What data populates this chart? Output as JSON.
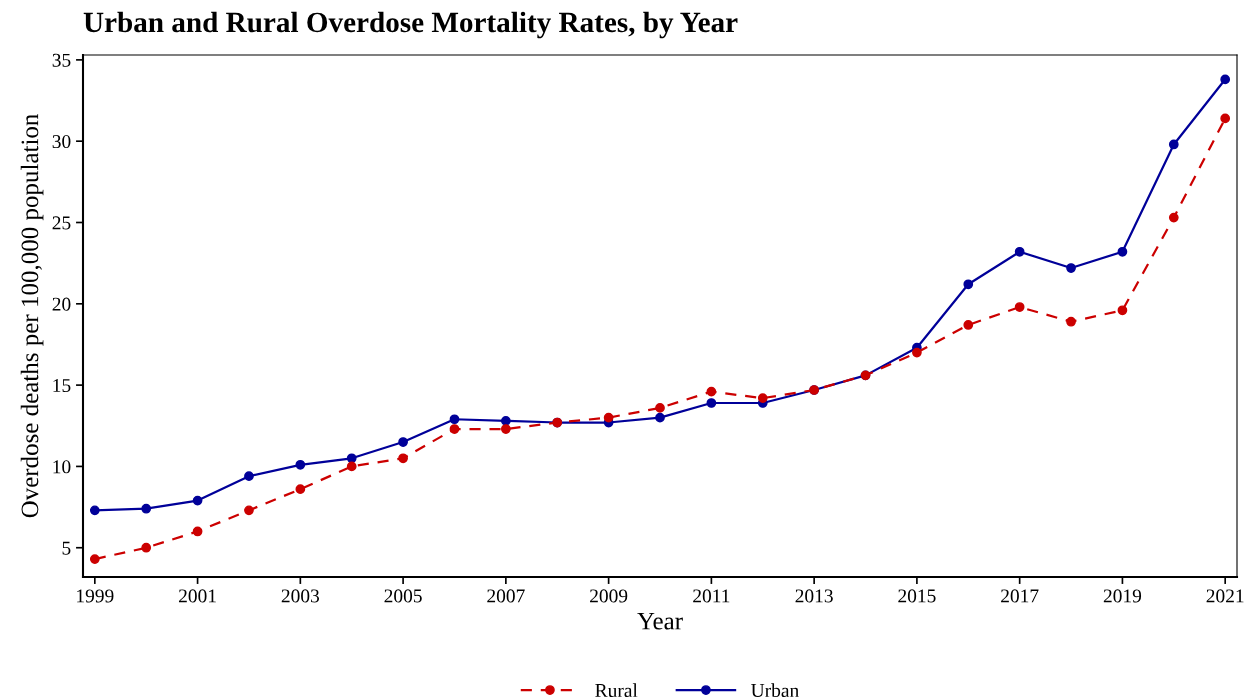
{
  "chart_data": {
    "type": "line",
    "title": "Urban and Rural Overdose Mortality Rates, by Year",
    "xlabel": "Year",
    "ylabel": "Overdose deaths per 100,000 population",
    "x": [
      1999,
      2000,
      2001,
      2002,
      2003,
      2004,
      2005,
      2006,
      2007,
      2008,
      2009,
      2010,
      2011,
      2012,
      2013,
      2014,
      2015,
      2016,
      2017,
      2018,
      2019,
      2020,
      2021
    ],
    "series": [
      {
        "name": "Rural",
        "color": "#cc0000",
        "line_style": "dashed",
        "values": [
          4.3,
          5.0,
          6.0,
          7.3,
          8.6,
          10.0,
          10.5,
          12.3,
          12.3,
          12.7,
          13.0,
          13.6,
          14.6,
          14.2,
          14.7,
          15.6,
          17.0,
          18.7,
          19.8,
          18.9,
          19.6,
          25.3,
          31.4
        ]
      },
      {
        "name": "Urban",
        "color": "#000099",
        "line_style": "solid",
        "values": [
          7.3,
          7.4,
          7.9,
          9.4,
          10.1,
          10.5,
          11.5,
          12.9,
          12.8,
          12.7,
          12.7,
          13.0,
          13.9,
          13.9,
          14.7,
          15.6,
          17.3,
          21.2,
          23.2,
          22.2,
          23.2,
          29.8,
          33.8
        ]
      }
    ],
    "marker": "circle",
    "xlim": [
      1998.77,
      2021.23
    ],
    "xticks": [
      1999,
      2001,
      2003,
      2005,
      2007,
      2009,
      2011,
      2013,
      2015,
      2017,
      2019,
      2021
    ],
    "ylim": [
      3.2,
      35.3
    ],
    "yticks": [
      5,
      10,
      15,
      20,
      25,
      30,
      35
    ],
    "grid": false,
    "legend": "bottom"
  }
}
